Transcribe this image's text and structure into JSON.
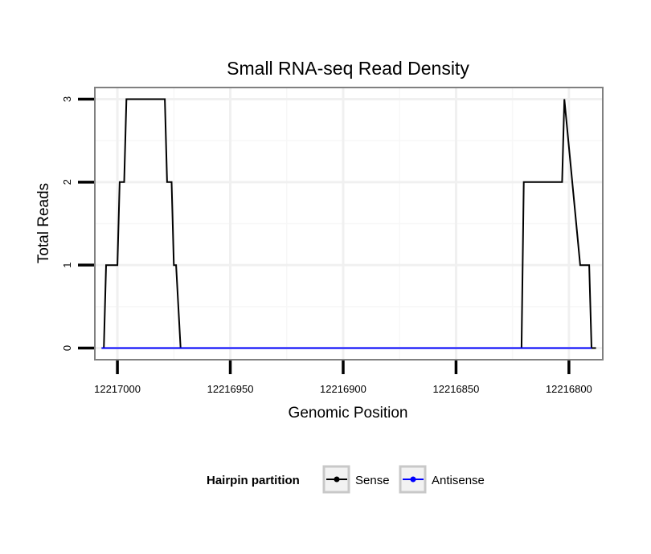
{
  "chart_data": {
    "type": "line",
    "title": "Small RNA-seq Read Density",
    "xlabel": "Genomic Position",
    "ylabel": "Total Reads",
    "x_reversed": true,
    "xlim": [
      12217010,
      12216785
    ],
    "ylim": [
      -0.14,
      3.14
    ],
    "x_ticks": [
      12217000,
      12216950,
      12216900,
      12216850,
      12216800
    ],
    "x_tick_labels": [
      "12217000",
      "12216950",
      "12216900",
      "12216850",
      "12216800"
    ],
    "y_ticks": [
      0,
      1,
      2,
      3
    ],
    "y_tick_labels": [
      "0",
      "1",
      "2",
      "3"
    ],
    "grid": true,
    "legend": {
      "title": "Hairpin partition",
      "placement": "bottom",
      "entries": [
        "Sense",
        "Antisense"
      ]
    },
    "series": [
      {
        "name": "Sense",
        "color": "#000000",
        "x": [
          12217007,
          12217006,
          12217005,
          12217000,
          12216999,
          12216997,
          12216996,
          12216994,
          12216993,
          12216979,
          12216978,
          12216976,
          12216975,
          12216974,
          12216972,
          12216821,
          12216820,
          12216803,
          12216802,
          12216795,
          12216791,
          12216790,
          12216788
        ],
        "values": [
          0,
          0,
          1,
          1,
          2,
          2,
          3,
          3,
          3,
          3,
          2,
          2,
          1,
          1,
          0,
          0,
          2,
          2,
          3,
          1,
          1,
          0,
          0
        ]
      },
      {
        "name": "Antisense",
        "color": "#0000ff",
        "x": [
          12217007,
          12216975,
          12216821,
          12216790
        ],
        "values": [
          0,
          0,
          0,
          0
        ]
      }
    ]
  }
}
